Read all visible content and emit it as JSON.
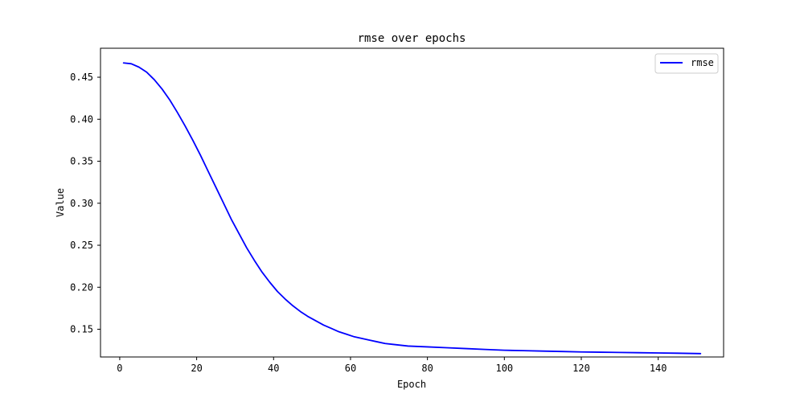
{
  "chart_data": {
    "type": "line",
    "title": "rmse over epochs",
    "xlabel": "Epoch",
    "ylabel": "Value",
    "xlim": [
      -5,
      157
    ],
    "ylim": [
      0.117,
      0.4845
    ],
    "x_ticks": [
      0,
      20,
      40,
      60,
      80,
      100,
      120,
      140
    ],
    "y_ticks": [
      0.15,
      0.2,
      0.25,
      0.3,
      0.35,
      0.4,
      0.45
    ],
    "y_tick_labels": [
      "0.15",
      "0.20",
      "0.25",
      "0.30",
      "0.35",
      "0.40",
      "0.45"
    ],
    "grid": false,
    "legend": {
      "placement": "top-right",
      "entries": [
        "rmse"
      ]
    },
    "series": [
      {
        "name": "rmse",
        "color": "#0000ff",
        "x": [
          1,
          3,
          5,
          7,
          9,
          11,
          13,
          15,
          17,
          19,
          21,
          23,
          25,
          27,
          29,
          31,
          33,
          35,
          37,
          39,
          41,
          43,
          45,
          47,
          49,
          51,
          53,
          55,
          57,
          59,
          61,
          63,
          65,
          67,
          69,
          71,
          75,
          80,
          85,
          90,
          95,
          100,
          105,
          110,
          115,
          120,
          125,
          130,
          135,
          140,
          145,
          151
        ],
        "values": [
          0.467,
          0.466,
          0.462,
          0.456,
          0.447,
          0.436,
          0.423,
          0.408,
          0.392,
          0.375,
          0.357,
          0.338,
          0.319,
          0.3,
          0.281,
          0.264,
          0.247,
          0.232,
          0.218,
          0.206,
          0.195,
          0.186,
          0.178,
          0.171,
          0.165,
          0.16,
          0.155,
          0.151,
          0.147,
          0.144,
          0.141,
          0.139,
          0.137,
          0.135,
          0.133,
          0.132,
          0.13,
          0.129,
          0.128,
          0.127,
          0.126,
          0.125,
          0.1245,
          0.124,
          0.1235,
          0.123,
          0.1227,
          0.1224,
          0.1221,
          0.1218,
          0.1215,
          0.121
        ]
      }
    ]
  }
}
